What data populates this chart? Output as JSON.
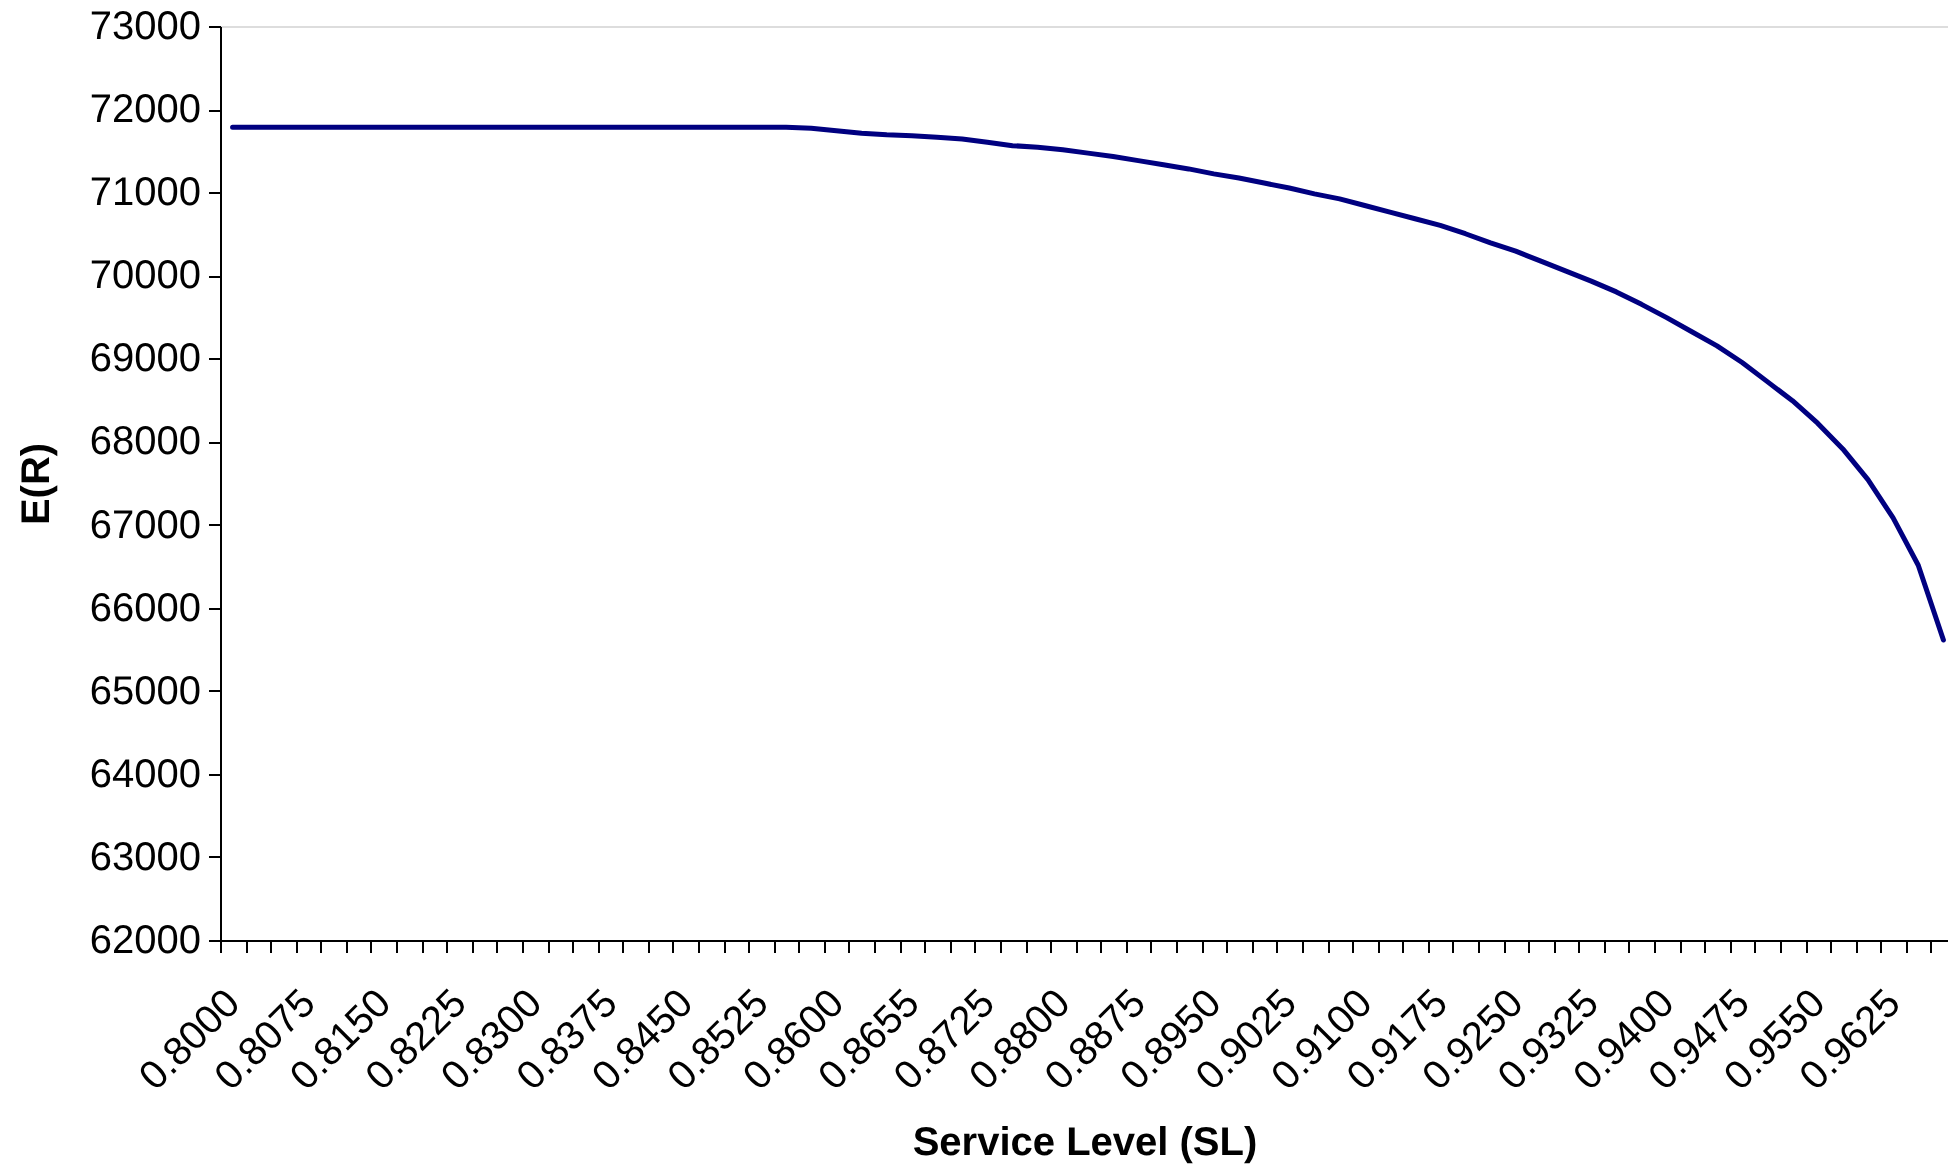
{
  "chart_data": {
    "type": "line",
    "xlabel": "Service Level (SL)",
    "ylabel": "E(R)",
    "categories": [
      "0.8000",
      null,
      null,
      "0.8075",
      null,
      null,
      "0.8150",
      null,
      null,
      "0.8225",
      null,
      null,
      "0.8300",
      null,
      null,
      "0.8375",
      null,
      null,
      "0.8450",
      null,
      null,
      "0.8525",
      null,
      null,
      "0.8600",
      null,
      null,
      "0.8655",
      null,
      null,
      "0.8725",
      null,
      null,
      "0.8800",
      null,
      null,
      "0.8875",
      null,
      null,
      "0.8950",
      null,
      null,
      "0.9025",
      null,
      null,
      "0.9100",
      null,
      null,
      "0.9175",
      null,
      null,
      "0.9250",
      null,
      null,
      "0.9325",
      null,
      null,
      "0.9400",
      null,
      null,
      "0.9475",
      null,
      null,
      "0.9550",
      null,
      null,
      "0.9625",
      null,
      null
    ],
    "series": [
      {
        "color": "#000080",
        "values": [
          71780,
          71780,
          71780,
          71780,
          71780,
          71780,
          71780,
          71780,
          71780,
          71780,
          71780,
          71780,
          71780,
          71780,
          71780,
          71780,
          71780,
          71780,
          71780,
          71780,
          71780,
          71780,
          71780,
          71770,
          71740,
          71710,
          71690,
          71680,
          71660,
          71640,
          71600,
          71560,
          71540,
          71510,
          71470,
          71430,
          71380,
          71330,
          71280,
          71220,
          71170,
          71110,
          71050,
          70980,
          70920,
          70840,
          70760,
          70680,
          70600,
          70500,
          70390,
          70290,
          70170,
          70050,
          69930,
          69800,
          69650,
          69490,
          69320,
          69150,
          68950,
          68720,
          68490,
          68220,
          67910,
          67540,
          67080,
          66510,
          65610
        ]
      }
    ],
    "ylim": [
      62000,
      73000
    ],
    "yticks": [
      62000,
      63000,
      64000,
      65000,
      66000,
      67000,
      68000,
      69000,
      70000,
      71000,
      72000,
      73000
    ],
    "grid": false,
    "line_style": "solid"
  }
}
